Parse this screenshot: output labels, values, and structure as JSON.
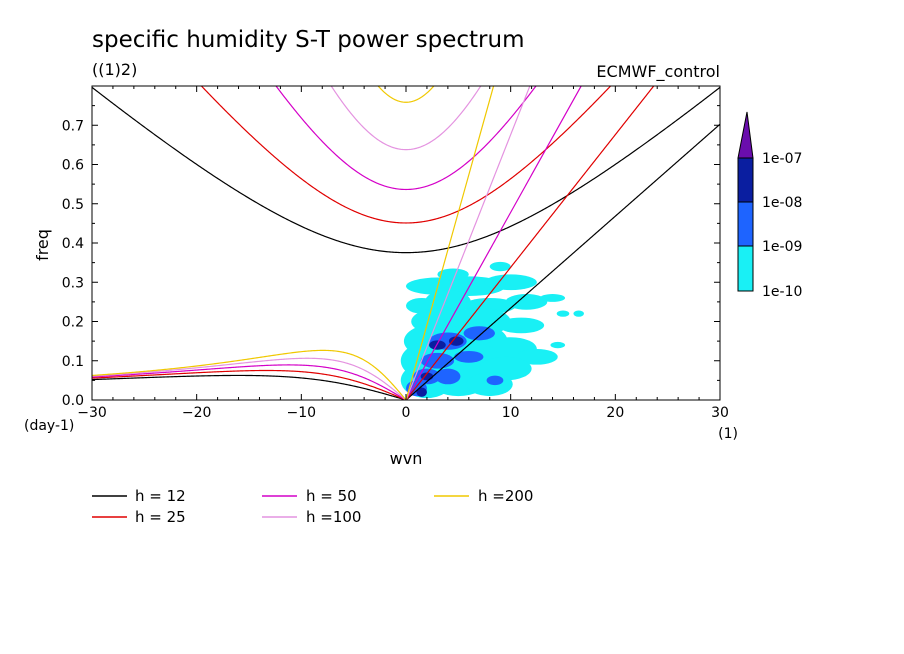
{
  "chart_data": {
    "type": "contour",
    "title": "specific humidity S-T power spectrum",
    "subtitle": "((1)2)",
    "dataset": "ECMWF_control",
    "xlabel": "wvn",
    "ylabel": "freq",
    "x_unit": "(1)",
    "y_unit": "(day-1)",
    "xlim": [
      -30,
      30
    ],
    "ylim": [
      0,
      0.8
    ],
    "x_ticks": [
      "−30",
      "−20",
      "−10",
      "0",
      "10",
      "20",
      "30"
    ],
    "x_tick_values": [
      -30,
      -20,
      -10,
      0,
      10,
      20,
      30
    ],
    "y_ticks": [
      "0.0",
      "0.1",
      "0.2",
      "0.3",
      "0.4",
      "0.5",
      "0.6",
      "0.7"
    ],
    "y_tick_values": [
      0,
      0.1,
      0.2,
      0.3,
      0.4,
      0.5,
      0.6,
      0.7
    ],
    "colorbar": {
      "labels": [
        "1e-07",
        "1e-08",
        "1e-09",
        "1e-10"
      ],
      "colors": [
        "#6a0dad",
        "#0a1ea0",
        "#1e64ff",
        "#19f0f5"
      ]
    },
    "dispersion_curves": [
      {
        "name": "h = 12",
        "color": "#000000"
      },
      {
        "name": "h = 25",
        "color": "#e00000"
      },
      {
        "name": "h = 50",
        "color": "#d400c8"
      },
      {
        "name": "h =100",
        "color": "#e493e0"
      },
      {
        "name": "h =200",
        "color": "#f0c800"
      }
    ],
    "curve_samples": {
      "x": [
        -30,
        -20,
        -10,
        -5,
        0,
        5,
        10,
        20,
        30
      ],
      "inertio_gravity_h12": [
        0.76,
        0.55,
        0.4,
        0.37,
        0.37,
        0.4,
        0.46,
        0.58,
        0.7
      ],
      "inertio_gravity_h25": [
        null,
        null,
        0.51,
        0.46,
        0.45,
        0.5,
        0.6,
        0.8,
        null
      ],
      "inertio_gravity_h50": [
        null,
        null,
        0.63,
        0.56,
        0.53,
        0.58,
        0.72,
        null,
        null
      ],
      "inertio_gravity_h100": [
        null,
        null,
        0.76,
        0.67,
        0.63,
        0.7,
        null,
        null,
        null
      ],
      "inertio_gravity_h200": [
        null,
        null,
        null,
        null,
        0.75,
        null,
        null,
        null,
        null
      ],
      "kelvin_h12": [
        null,
        null,
        null,
        null,
        0,
        0.11,
        0.22,
        0.44,
        0.66
      ],
      "rossby_h12": [
        0.055,
        0.063,
        0.052,
        0.033,
        0,
        null,
        null,
        null,
        null
      ],
      "rossby_h200": [
        0.062,
        0.088,
        0.128,
        0.11,
        0,
        null,
        null,
        null,
        null
      ]
    }
  }
}
